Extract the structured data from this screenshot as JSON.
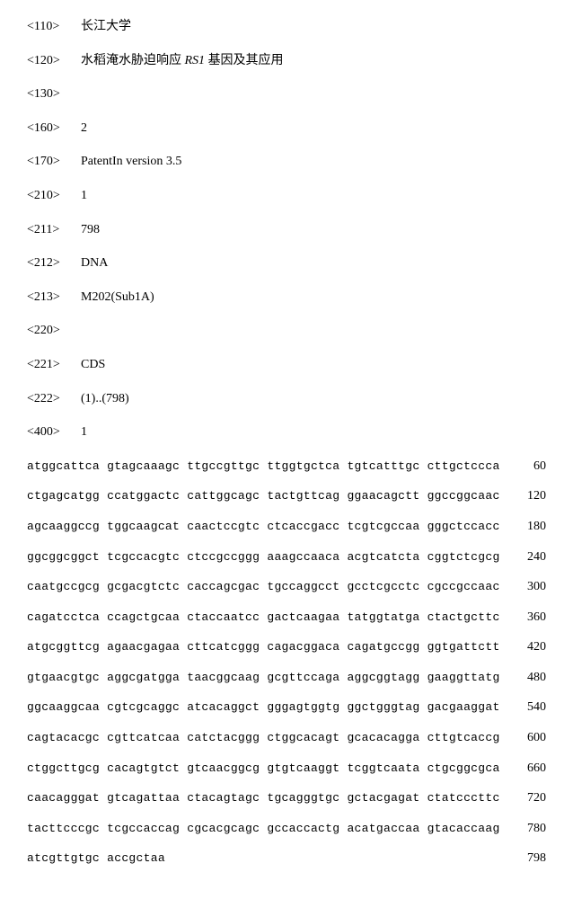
{
  "headers": [
    {
      "tag": "<110>",
      "value": "长江大学"
    },
    {
      "tag": "<120>",
      "value_pre": "水稻淹水胁迫响应 ",
      "gene": "RS1",
      "value_post": " 基因及其应用"
    },
    {
      "tag": "<130>",
      "value": ""
    },
    {
      "tag": "<160>",
      "value": "2"
    },
    {
      "tag": "<170>",
      "value": "PatentIn version 3.5"
    },
    {
      "tag": "<210>",
      "value": "1"
    },
    {
      "tag": "<211>",
      "value": "798"
    },
    {
      "tag": "<212>",
      "value": "DNA"
    },
    {
      "tag": "<213>",
      "value": "M202(Sub1A)"
    },
    {
      "tag": "<220>",
      "value": ""
    },
    {
      "tag": "<221>",
      "value": "CDS"
    },
    {
      "tag": "<222>",
      "value": "(1)..(798)"
    },
    {
      "tag": "<400>",
      "value": "1"
    }
  ],
  "sequence": [
    {
      "seq": "atggcattca gtagcaaagc ttgccgttgc ttggtgctca tgtcatttgc cttgctccca",
      "num": "60"
    },
    {
      "seq": "ctgagcatgg ccatggactc cattggcagc tactgttcag ggaacagctt ggccggcaac",
      "num": "120"
    },
    {
      "seq": "agcaaggccg tggcaagcat caactccgtc ctcaccgacc tcgtcgccaa gggctccacc",
      "num": "180"
    },
    {
      "seq": "ggcggcggct tcgccacgtc ctccgccggg aaagccaaca acgtcatcta cggtctcgcg",
      "num": "240"
    },
    {
      "seq": "caatgccgcg gcgacgtctc caccagcgac tgccaggcct gcctcgcctc cgccgccaac",
      "num": "300"
    },
    {
      "seq": "cagatcctca ccagctgcaa ctaccaatcc gactcaagaa tatggtatga ctactgcttc",
      "num": "360"
    },
    {
      "seq": "atgcggttcg agaacgagaa cttcatcggg cagacggaca cagatgccgg ggtgattctt",
      "num": "420"
    },
    {
      "seq": "gtgaacgtgc aggcgatgga taacggcaag gcgttccaga aggcggtagg gaaggttatg",
      "num": "480"
    },
    {
      "seq": "ggcaaggcaa cgtcgcaggc atcacaggct gggagtggtg ggctgggtag gacgaaggat",
      "num": "540"
    },
    {
      "seq": "cagtacacgc cgttcatcaa catctacggg ctggcacagt gcacacagga cttgtcaccg",
      "num": "600"
    },
    {
      "seq": "ctggcttgcg cacagtgtct gtcaacggcg gtgtcaaggt tcggtcaata ctgcggcgca",
      "num": "660"
    },
    {
      "seq": "caacagggat gtcagattaa ctacagtagc tgcagggtgc gctacgagat ctatcccttc",
      "num": "720"
    },
    {
      "seq": "tacttcccgc tcgccaccag cgcacgcagc gccaccactg acatgaccaa gtacaccaag",
      "num": "780"
    },
    {
      "seq": "atcgttgtgc accgctaa",
      "num": "798"
    }
  ]
}
